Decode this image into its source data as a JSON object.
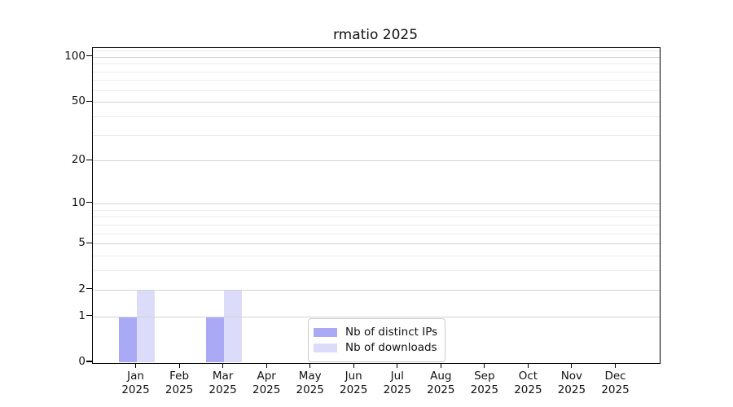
{
  "window": {
    "background": "#ffffff"
  },
  "chart_data": {
    "type": "bar",
    "title": "rmatio 2025",
    "categories": [
      "Jan 2025",
      "Feb 2025",
      "Mar 2025",
      "Apr 2025",
      "May 2025",
      "Jun 2025",
      "Jul 2025",
      "Aug 2025",
      "Sep 2025",
      "Oct 2025",
      "Nov 2025",
      "Dec 2025"
    ],
    "series": [
      {
        "name": "Nb of distinct IPs",
        "color": "#a9a9f5",
        "values": [
          1,
          0,
          1,
          0,
          0,
          0,
          0,
          0,
          0,
          0,
          0,
          0
        ]
      },
      {
        "name": "Nb of downloads",
        "color": "#dcdcfa",
        "values": [
          2,
          0,
          2,
          0,
          0,
          0,
          0,
          0,
          0,
          0,
          0,
          0
        ]
      }
    ],
    "xlabel": "",
    "ylabel": "",
    "yscale": "log1p",
    "ytick_values": [
      0,
      1,
      2,
      5,
      10,
      20,
      50,
      100
    ],
    "ytick_labels": [
      "0",
      "1",
      "2",
      "5",
      "10",
      "20",
      "50",
      "100"
    ],
    "minor_gridline_values": [
      3,
      4,
      6,
      7,
      8,
      9,
      30,
      40,
      60,
      70,
      80,
      90,
      110
    ],
    "ylim": [
      0,
      115
    ],
    "grid": "horizontal",
    "legend": {
      "position": "bottom-center",
      "items": [
        "Nb of distinct IPs",
        "Nb of downloads"
      ]
    },
    "colors": {
      "axis": "#000000",
      "grid_major": "#d2d2d2",
      "grid_minor": "#ebebeb",
      "text": "#111111",
      "legend_border": "#cccccc",
      "legend_background": "#ffffff"
    }
  }
}
